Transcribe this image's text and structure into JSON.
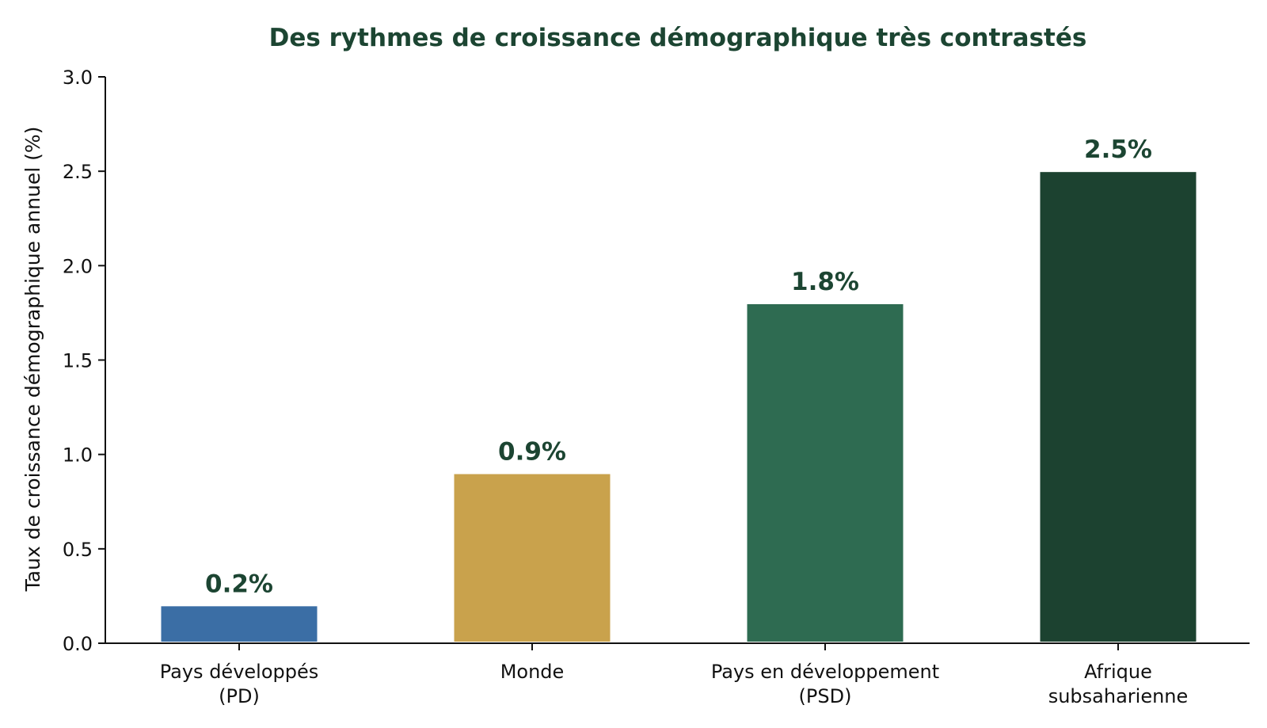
{
  "chart_data": {
    "type": "bar",
    "title": "Des rythmes de croissance démographique très contrastés",
    "ylabel": "Taux de croissance démographique annuel (%)",
    "xlabel": "",
    "ylim": [
      0,
      3.0
    ],
    "yticks": [
      "0.0",
      "0.5",
      "1.0",
      "1.5",
      "2.0",
      "2.5",
      "3.0"
    ],
    "categories": [
      [
        "Pays développés",
        "(PD)"
      ],
      [
        "Monde"
      ],
      [
        "Pays en développement",
        "(PSD)"
      ],
      [
        "Afrique",
        "subsaharienne"
      ]
    ],
    "values": [
      0.2,
      0.9,
      1.8,
      2.5
    ],
    "data_labels": [
      "0.2%",
      "0.9%",
      "1.8%",
      "2.5%"
    ],
    "colors": [
      "#3b6ea5",
      "#c9a24c",
      "#2e6b51",
      "#1c4230"
    ],
    "label_color": "#1c4532",
    "grid": false,
    "legend": "none"
  }
}
